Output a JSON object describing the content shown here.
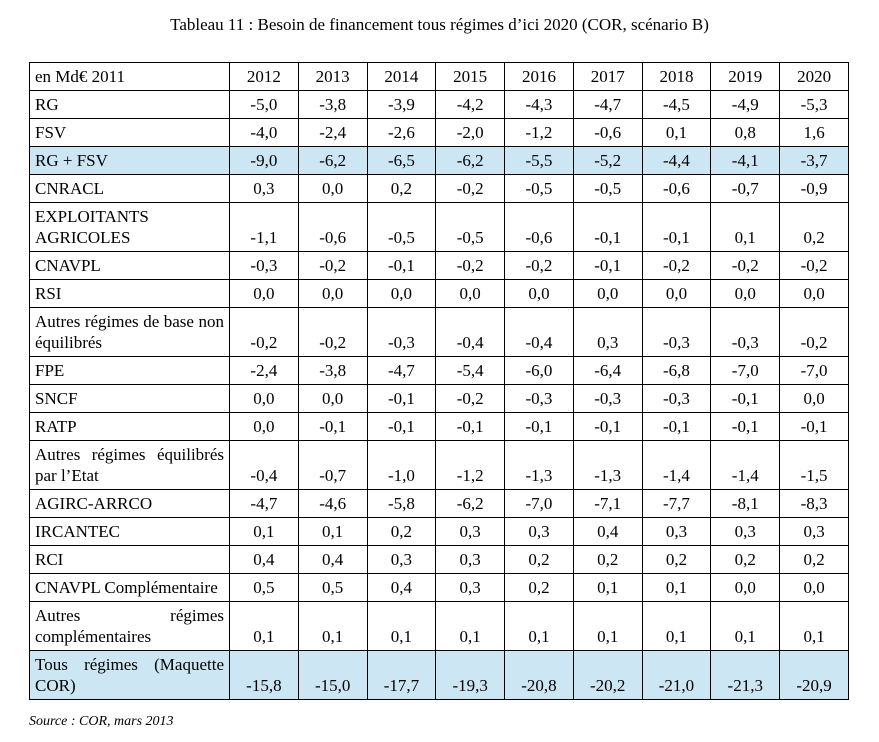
{
  "page": {
    "title": "Tableau 11 : Besoin de financement tous régimes d’ici 2020 (COR, scénario B)",
    "source": "Source : COR, mars 2013"
  },
  "colors": {
    "highlight_row": "#CDE6F3",
    "border": "#000000",
    "text": "#000000",
    "background": "#FFFFFF"
  },
  "chart_data": {
    "type": "table",
    "unit_label": "en Md€ 2011",
    "columns": [
      "2012",
      "2013",
      "2014",
      "2015",
      "2016",
      "2017",
      "2018",
      "2019",
      "2020"
    ],
    "rows": [
      {
        "label": "RG",
        "values": [
          "-5,0",
          "-3,8",
          "-3,9",
          "-4,2",
          "-4,3",
          "-4,7",
          "-4,5",
          "-4,9",
          "-5,3"
        ],
        "highlight": false
      },
      {
        "label": "FSV",
        "values": [
          "-4,0",
          "-2,4",
          "-2,6",
          "-2,0",
          "-1,2",
          "-0,6",
          "0,1",
          "0,8",
          "1,6"
        ],
        "highlight": false
      },
      {
        "label": "RG + FSV",
        "values": [
          "-9,0",
          "-6,2",
          "-6,5",
          "-6,2",
          "-5,5",
          "-5,2",
          "-4,4",
          "-4,1",
          "-3,7"
        ],
        "highlight": true
      },
      {
        "label": "CNRACL",
        "values": [
          "0,3",
          "0,0",
          "0,2",
          "-0,2",
          "-0,5",
          "-0,5",
          "-0,6",
          "-0,7",
          "-0,9"
        ],
        "highlight": false
      },
      {
        "label": "EXPLOITANTS AGRICOLES",
        "values": [
          "-1,1",
          "-0,6",
          "-0,5",
          "-0,5",
          "-0,6",
          "-0,1",
          "-0,1",
          "0,1",
          "0,2"
        ],
        "highlight": false
      },
      {
        "label": "CNAVPL",
        "values": [
          "-0,3",
          "-0,2",
          "-0,1",
          "-0,2",
          "-0,2",
          "-0,1",
          "-0,2",
          "-0,2",
          "-0,2"
        ],
        "highlight": false
      },
      {
        "label": "RSI",
        "values": [
          "0,0",
          "0,0",
          "0,0",
          "0,0",
          "0,0",
          "0,0",
          "0,0",
          "0,0",
          "0,0"
        ],
        "highlight": false
      },
      {
        "label": "Autres régimes de base non équilibrés",
        "values": [
          "-0,2",
          "-0,2",
          "-0,3",
          "-0,4",
          "-0,4",
          "0,3",
          "-0,3",
          "-0,3",
          "-0,2"
        ],
        "highlight": false
      },
      {
        "label": "FPE",
        "values": [
          "-2,4",
          "-3,8",
          "-4,7",
          "-5,4",
          "-6,0",
          "-6,4",
          "-6,8",
          "-7,0",
          "-7,0"
        ],
        "highlight": false
      },
      {
        "label": "SNCF",
        "values": [
          "0,0",
          "0,0",
          "-0,1",
          "-0,2",
          "-0,3",
          "-0,3",
          "-0,3",
          "-0,1",
          "0,0"
        ],
        "highlight": false
      },
      {
        "label": "RATP",
        "values": [
          "0,0",
          "-0,1",
          "-0,1",
          "-0,1",
          "-0,1",
          "-0,1",
          "-0,1",
          "-0,1",
          "-0,1"
        ],
        "highlight": false
      },
      {
        "label": "Autres régimes équilibrés par l’Etat",
        "values": [
          "-0,4",
          "-0,7",
          "-1,0",
          "-1,2",
          "-1,3",
          "-1,3",
          "-1,4",
          "-1,4",
          "-1,5"
        ],
        "highlight": false
      },
      {
        "label": "AGIRC-ARRCO",
        "values": [
          "-4,7",
          "-4,6",
          "-5,8",
          "-6,2",
          "-7,0",
          "-7,1",
          "-7,7",
          "-8,1",
          "-8,3"
        ],
        "highlight": false
      },
      {
        "label": "IRCANTEC",
        "values": [
          "0,1",
          "0,1",
          "0,2",
          "0,3",
          "0,3",
          "0,4",
          "0,3",
          "0,3",
          "0,3"
        ],
        "highlight": false
      },
      {
        "label": "RCI",
        "values": [
          "0,4",
          "0,4",
          "0,3",
          "0,3",
          "0,2",
          "0,2",
          "0,2",
          "0,2",
          "0,2"
        ],
        "highlight": false
      },
      {
        "label": "CNAVPL Complémentaire",
        "values": [
          "0,5",
          "0,5",
          "0,4",
          "0,3",
          "0,2",
          "0,1",
          "0,1",
          "0,0",
          "0,0"
        ],
        "highlight": false
      },
      {
        "label": "Autres régimes complémentaires",
        "values": [
          "0,1",
          "0,1",
          "0,1",
          "0,1",
          "0,1",
          "0,1",
          "0,1",
          "0,1",
          "0,1"
        ],
        "highlight": false
      },
      {
        "label": "Tous régimes (Maquette COR)",
        "values": [
          "-15,8",
          "-15,0",
          "-17,7",
          "-19,3",
          "-20,8",
          "-20,2",
          "-21,0",
          "-21,3",
          "-20,9"
        ],
        "highlight": true
      }
    ]
  }
}
